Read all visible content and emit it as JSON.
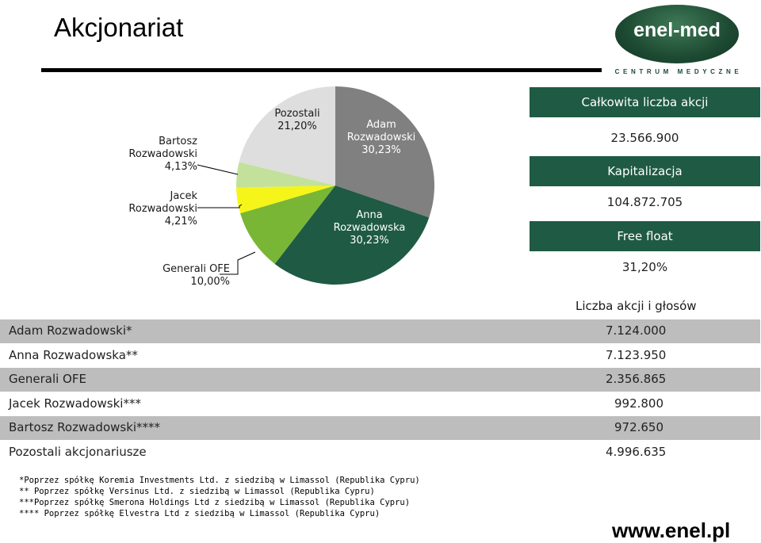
{
  "title": "Akcjonariat",
  "logo": {
    "text": "enel-med",
    "subtitle": "CENTRUM MEDYCZNE"
  },
  "colors": {
    "adam": "#808080",
    "anna": "#1f5a44",
    "generali": "#7ab636",
    "jacek": "#f5f51a",
    "bartosz": "#c3e19a",
    "pozostali": "#dedede",
    "header_bg": "#1f5a44",
    "row_shade": "#bdbdbd"
  },
  "chart_data": {
    "type": "pie",
    "title": "",
    "slices": [
      {
        "name": "Adam Rozwadowski",
        "label_lines": [
          "Adam",
          "Rozwadowski"
        ],
        "value": 30.23,
        "display": "30,23%",
        "color": "#808080"
      },
      {
        "name": "Anna Rozwadowska",
        "label_lines": [
          "Anna",
          "Rozwadowska"
        ],
        "value": 30.23,
        "display": "30,23%",
        "color": "#1f5a44"
      },
      {
        "name": "Generali OFE",
        "label_lines": [
          "Generali OFE"
        ],
        "value": 10.0,
        "display": "10,00%",
        "color": "#7ab636"
      },
      {
        "name": "Jacek Rozwadowski",
        "label_lines": [
          "Jacek",
          "Rozwadowski"
        ],
        "value": 4.21,
        "display": "4,21%",
        "color": "#f5f51a"
      },
      {
        "name": "Bartosz Rozwadowski",
        "label_lines": [
          "Bartosz",
          "Rozwadowski"
        ],
        "value": 4.13,
        "display": "4,13%",
        "color": "#c3e19a"
      },
      {
        "name": "Pozostali",
        "label_lines": [
          "Pozostali"
        ],
        "value": 21.2,
        "display": "21,20%",
        "color": "#dedede"
      }
    ]
  },
  "info": [
    {
      "label": "Całkowita liczba akcji",
      "value": "23.566.900"
    },
    {
      "label": "Kapitalizacja",
      "value": "104.872.705"
    },
    {
      "label": "Free float",
      "value": "31,20%"
    }
  ],
  "table": {
    "header": "Liczba akcji i głosów",
    "rows": [
      {
        "name": "Adam Rozwadowski*",
        "value": "7.124.000"
      },
      {
        "name": "Anna Rozwadowska**",
        "value": "7.123.950"
      },
      {
        "name": "Generali OFE",
        "value": "2.356.865"
      },
      {
        "name": "Jacek Rozwadowski***",
        "value": "992.800"
      },
      {
        "name": "Bartosz Rozwadowski****",
        "value": "972.650"
      },
      {
        "name": "Pozostali akcjonariusze",
        "value": "4.996.635"
      }
    ]
  },
  "footnotes": [
    "*Poprzez spółkę Koremia Investments Ltd. z siedzibą w Limassol (Republika Cypru)",
    "** Poprzez spółkę Versinus Ltd. z siedzibą w Limassol (Republika Cypru)",
    "***Poprzez spółkę Smerona Holdings Ltd z siedzibą w Limassol (Republika Cypru)",
    "**** Poprzez spółkę Elvestra Ltd z siedzibą w Limassol (Republika Cypru)"
  ],
  "website": "www.enel.pl"
}
